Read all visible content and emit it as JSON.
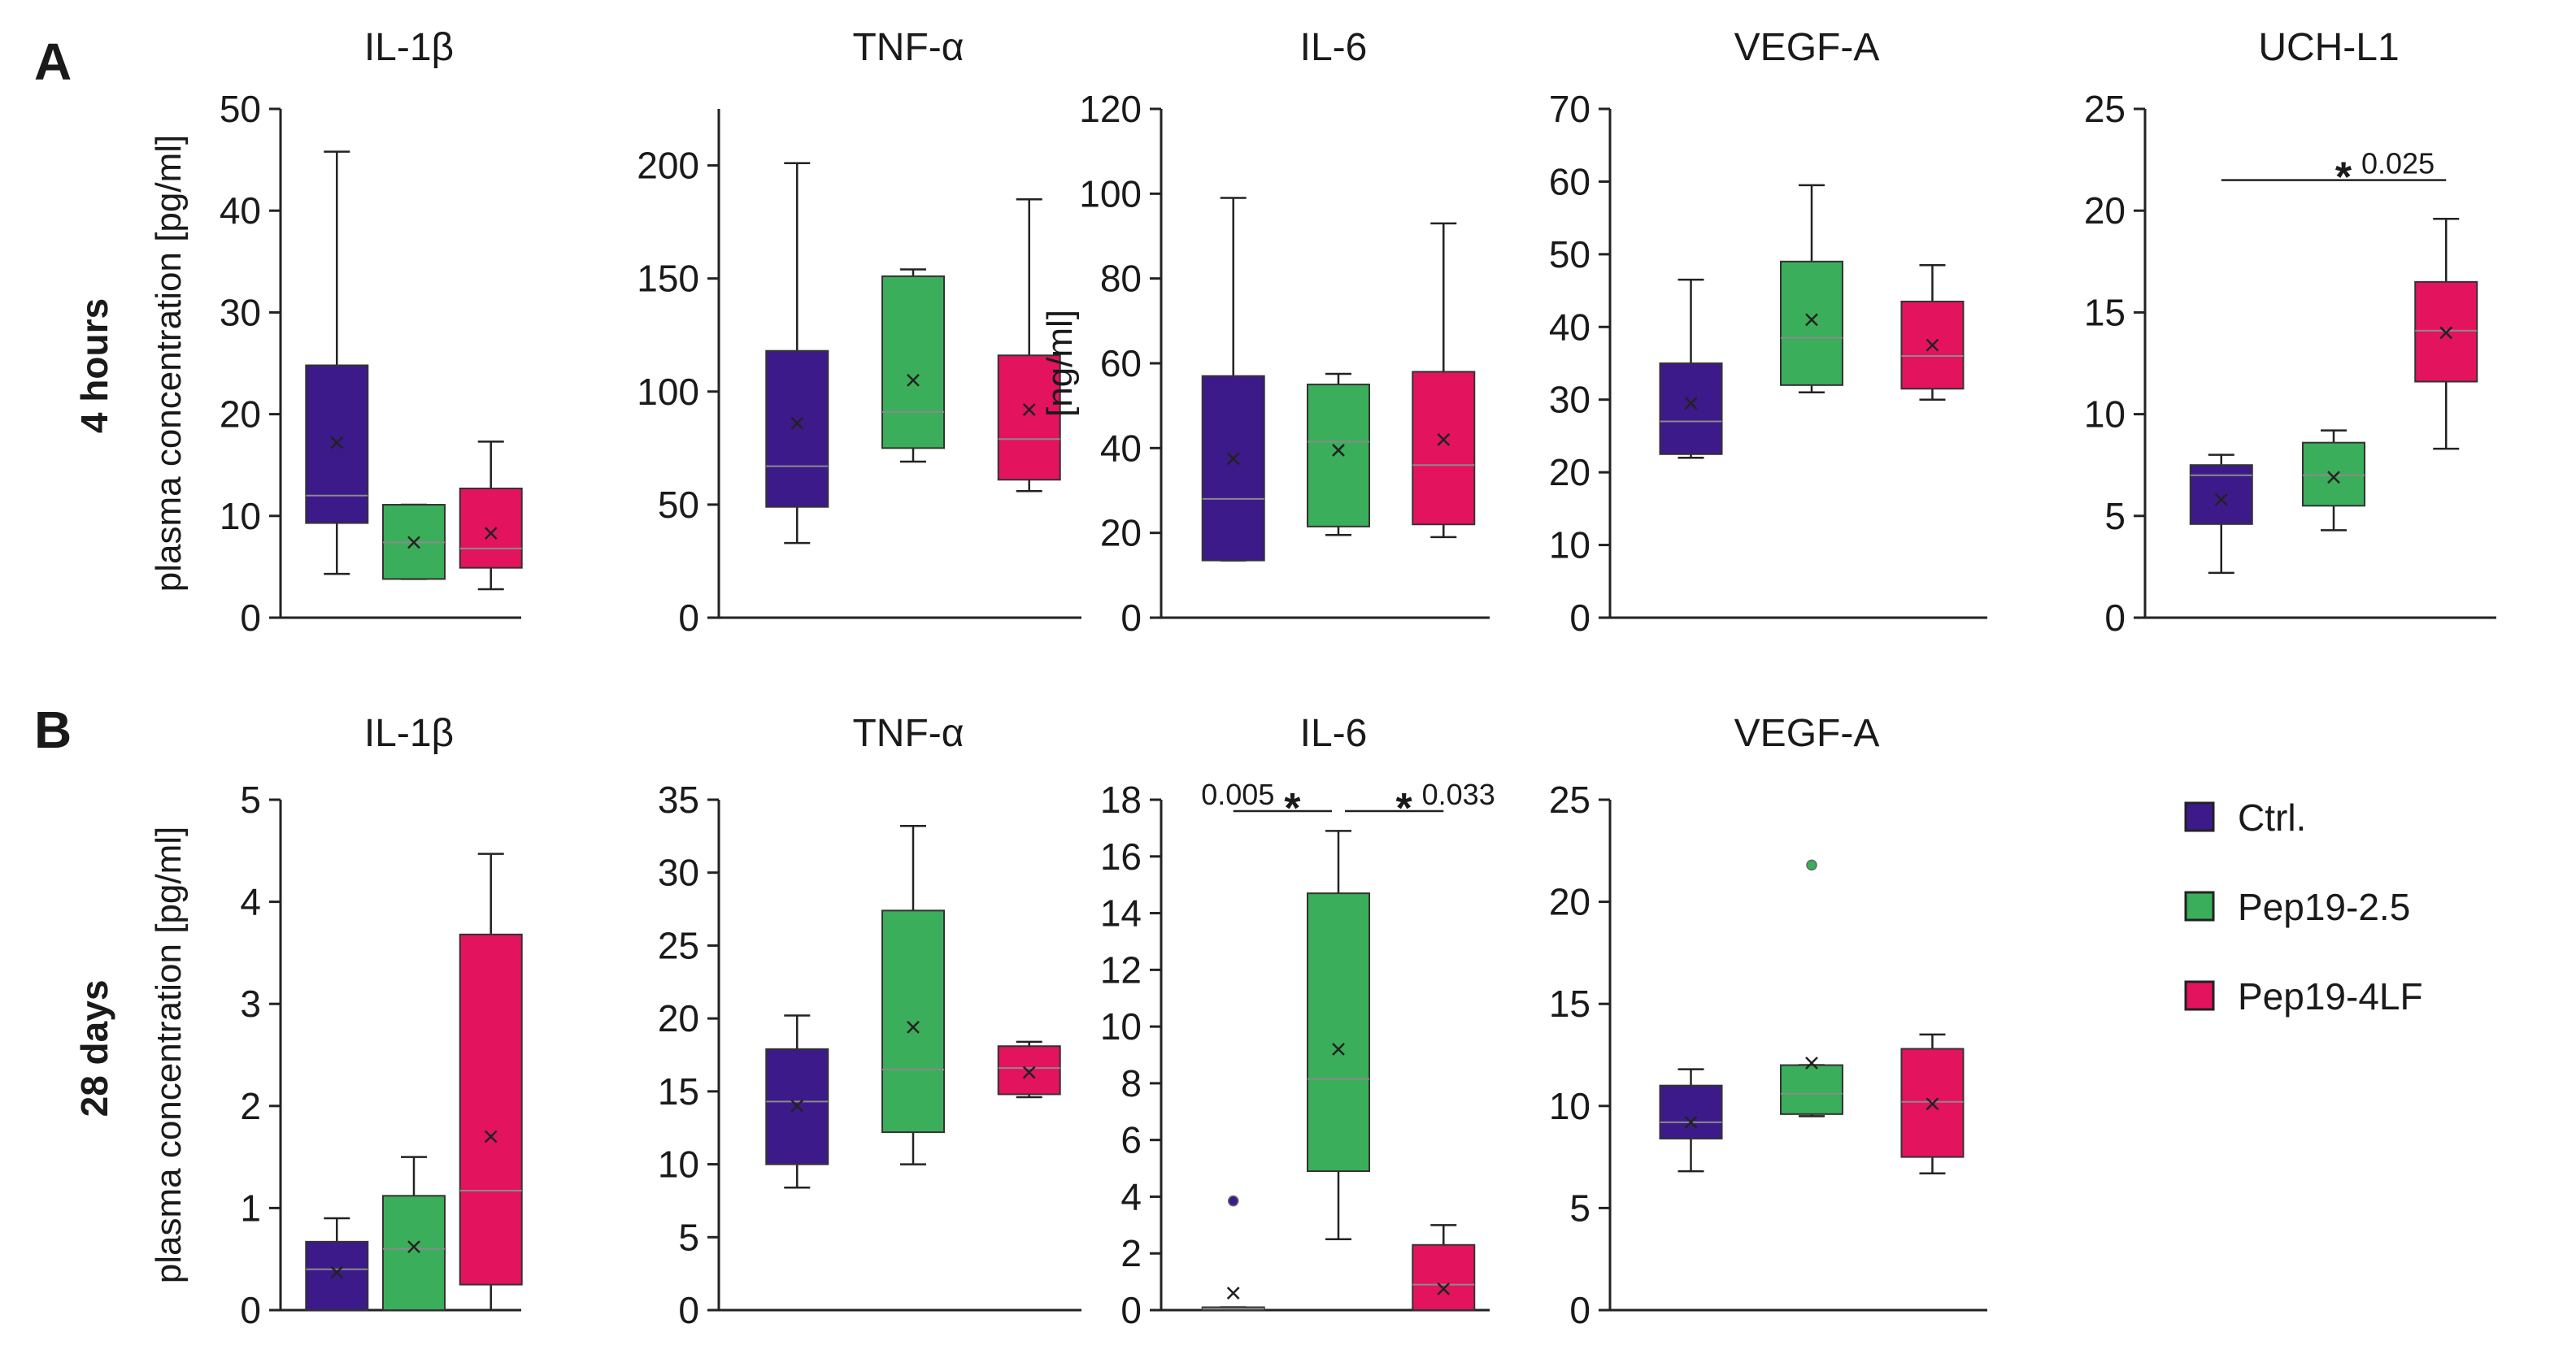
{
  "figure": {
    "panel_a_letter": "A",
    "panel_b_letter": "B",
    "row_a_label": "4 hours",
    "row_b_label": "28 days",
    "ylabel_main": "plasma concentration [pg/ml]",
    "ylabel_il6_4h": "[ng/ml]"
  },
  "colors": {
    "ctrl": "#3d1a8a",
    "pep25": "#3aae5a",
    "pep4lf": "#e4135e",
    "axis": "#222222",
    "median": "#8a8a8a"
  },
  "legend": {
    "items": [
      {
        "label": "Ctrl.",
        "color_key": "ctrl"
      },
      {
        "label": "Pep19-2.5",
        "color_key": "pep25"
      },
      {
        "label": "Pep19-4LF",
        "color_key": "pep4lf"
      }
    ]
  },
  "chart_data": [
    {
      "type": "box",
      "row": 0,
      "col": 0,
      "title": "IL-1β",
      "ylim": [
        0,
        50
      ],
      "yticks": [
        0,
        10,
        20,
        30,
        40,
        50
      ],
      "ylabel": "plasma concentration [pg/ml]",
      "groups": [
        {
          "name": "Ctrl.",
          "whisker_low": 4.3,
          "q1": 9.3,
          "median": 12.0,
          "q3": 24.8,
          "whisker_high": 45.8,
          "mean": 17.2,
          "outliers": []
        },
        {
          "name": "Pep19-2.5",
          "whisker_low": 3.8,
          "q1": 3.8,
          "median": 7.4,
          "q3": 11.1,
          "whisker_high": 11.1,
          "mean": 7.4,
          "outliers": []
        },
        {
          "name": "Pep19-4LF",
          "whisker_low": 2.8,
          "q1": 4.9,
          "median": 6.8,
          "q3": 12.7,
          "whisker_high": 17.3,
          "mean": 8.3,
          "outliers": []
        }
      ],
      "significance": []
    },
    {
      "type": "box",
      "row": 0,
      "col": 1,
      "title": "TNF-α",
      "ylim": [
        0,
        225
      ],
      "yticks": [
        0,
        50,
        100,
        150,
        200
      ],
      "ylabel": "",
      "groups": [
        {
          "name": "Ctrl.",
          "whisker_low": 33,
          "q1": 49,
          "median": 67,
          "q3": 118,
          "whisker_high": 201,
          "mean": 86,
          "outliers": []
        },
        {
          "name": "Pep19-2.5",
          "whisker_low": 69,
          "q1": 75,
          "median": 91,
          "q3": 151,
          "whisker_high": 154,
          "mean": 105,
          "outliers": []
        },
        {
          "name": "Pep19-4LF",
          "whisker_low": 56,
          "q1": 61,
          "median": 79,
          "q3": 116,
          "whisker_high": 185,
          "mean": 92,
          "outliers": []
        }
      ],
      "significance": []
    },
    {
      "type": "box",
      "row": 0,
      "col": 2,
      "title": "IL-6",
      "ylim": [
        0,
        120
      ],
      "yticks": [
        0,
        20,
        40,
        60,
        80,
        100,
        120
      ],
      "ylabel": "[ng/ml]",
      "groups": [
        {
          "name": "Ctrl.",
          "whisker_low": 13.5,
          "q1": 13.5,
          "median": 28,
          "q3": 57,
          "whisker_high": 99,
          "mean": 37.5,
          "outliers": []
        },
        {
          "name": "Pep19-2.5",
          "whisker_low": 19.5,
          "q1": 21.5,
          "median": 41.5,
          "q3": 55,
          "whisker_high": 57.5,
          "mean": 39.5,
          "outliers": []
        },
        {
          "name": "Pep19-4LF",
          "whisker_low": 19,
          "q1": 22,
          "median": 36,
          "q3": 58,
          "whisker_high": 93,
          "mean": 42,
          "outliers": []
        }
      ],
      "significance": []
    },
    {
      "type": "box",
      "row": 0,
      "col": 3,
      "title": "VEGF-A",
      "ylim": [
        0,
        70
      ],
      "yticks": [
        0,
        10,
        20,
        30,
        40,
        50,
        60,
        70
      ],
      "ylabel": "",
      "groups": [
        {
          "name": "Ctrl.",
          "whisker_low": 22,
          "q1": 22.5,
          "median": 27,
          "q3": 35,
          "whisker_high": 46.5,
          "mean": 29.5,
          "outliers": []
        },
        {
          "name": "Pep19-2.5",
          "whisker_low": 31,
          "q1": 32,
          "median": 38.5,
          "q3": 49,
          "whisker_high": 59.5,
          "mean": 41,
          "outliers": []
        },
        {
          "name": "Pep19-4LF",
          "whisker_low": 30,
          "q1": 31.5,
          "median": 36,
          "q3": 43.5,
          "whisker_high": 48.5,
          "mean": 37.5,
          "outliers": []
        }
      ],
      "significance": []
    },
    {
      "type": "box",
      "row": 0,
      "col": 4,
      "title": "UCH-L1",
      "ylim": [
        0,
        25
      ],
      "yticks": [
        0,
        5,
        10,
        15,
        20,
        25
      ],
      "ylabel": "",
      "groups": [
        {
          "name": "Ctrl.",
          "whisker_low": 2.2,
          "q1": 4.6,
          "median": 7.0,
          "q3": 7.5,
          "whisker_high": 8.0,
          "mean": 5.8,
          "outliers": []
        },
        {
          "name": "Pep19-2.5",
          "whisker_low": 4.3,
          "q1": 5.5,
          "median": 7.0,
          "q3": 8.6,
          "whisker_high": 9.2,
          "mean": 6.9,
          "outliers": []
        },
        {
          "name": "Pep19-4LF",
          "whisker_low": 8.3,
          "q1": 11.6,
          "median": 14.1,
          "q3": 16.5,
          "whisker_high": 19.6,
          "mean": 14.0,
          "outliers": []
        }
      ],
      "significance": [
        {
          "from": 0,
          "to": 2,
          "y": 21.5,
          "star": "*",
          "p": "0.025",
          "p_side": "right"
        }
      ]
    },
    {
      "type": "box",
      "row": 1,
      "col": 0,
      "title": "IL-1β",
      "ylim": [
        0,
        5
      ],
      "yticks": [
        0,
        1,
        2,
        3,
        4,
        5
      ],
      "ylabel": "plasma concentration [pg/ml]",
      "groups": [
        {
          "name": "Ctrl.",
          "whisker_low": 0,
          "q1": 0,
          "median": 0.4,
          "q3": 0.67,
          "whisker_high": 0.9,
          "mean": 0.37,
          "outliers": []
        },
        {
          "name": "Pep19-2.5",
          "whisker_low": 0,
          "q1": 0,
          "median": 0.6,
          "q3": 1.12,
          "whisker_high": 1.5,
          "mean": 0.62,
          "outliers": []
        },
        {
          "name": "Pep19-4LF",
          "whisker_low": 0,
          "q1": 0.25,
          "median": 1.17,
          "q3": 3.68,
          "whisker_high": 4.47,
          "mean": 1.7,
          "outliers": []
        }
      ],
      "significance": []
    },
    {
      "type": "box",
      "row": 1,
      "col": 1,
      "title": "TNF-α",
      "ylim": [
        0,
        35
      ],
      "yticks": [
        0,
        5,
        10,
        15,
        20,
        25,
        30,
        35
      ],
      "ylabel": "",
      "groups": [
        {
          "name": "Ctrl.",
          "whisker_low": 8.4,
          "q1": 10,
          "median": 14.3,
          "q3": 17.9,
          "whisker_high": 20.2,
          "mean": 14,
          "outliers": []
        },
        {
          "name": "Pep19-2.5",
          "whisker_low": 10,
          "q1": 12.2,
          "median": 16.5,
          "q3": 27.4,
          "whisker_high": 33.2,
          "mean": 19.4,
          "outliers": []
        },
        {
          "name": "Pep19-4LF",
          "whisker_low": 14.6,
          "q1": 14.8,
          "median": 16.6,
          "q3": 18.1,
          "whisker_high": 18.4,
          "mean": 16.3,
          "outliers": []
        }
      ],
      "significance": []
    },
    {
      "type": "box",
      "row": 1,
      "col": 2,
      "title": "IL-6",
      "ylim": [
        0,
        18
      ],
      "yticks": [
        0,
        2,
        4,
        6,
        8,
        10,
        12,
        14,
        16,
        18
      ],
      "ylabel": "",
      "groups": [
        {
          "name": "Ctrl.",
          "whisker_low": 0,
          "q1": 0,
          "median": 0.05,
          "q3": 0.1,
          "whisker_high": 0.1,
          "mean": 0.6,
          "outliers": [
            3.85
          ]
        },
        {
          "name": "Pep19-2.5",
          "whisker_low": 2.5,
          "q1": 4.9,
          "median": 8.15,
          "q3": 14.7,
          "whisker_high": 16.9,
          "mean": 9.2,
          "outliers": []
        },
        {
          "name": "Pep19-4LF",
          "whisker_low": 0,
          "q1": 0,
          "median": 0.9,
          "q3": 2.3,
          "whisker_high": 3.0,
          "mean": 0.75,
          "outliers": []
        }
      ],
      "significance": [
        {
          "from": 0,
          "to": 1,
          "y": 17.6,
          "star": "*",
          "p": "0.005",
          "p_side": "left"
        },
        {
          "from": 1,
          "to": 2,
          "y": 17.6,
          "star": "*",
          "p": "0.033",
          "p_side": "right"
        }
      ]
    },
    {
      "type": "box",
      "row": 1,
      "col": 3,
      "title": "VEGF-A",
      "ylim": [
        0,
        25
      ],
      "yticks": [
        0,
        5,
        10,
        15,
        20,
        25
      ],
      "ylabel": "",
      "groups": [
        {
          "name": "Ctrl.",
          "whisker_low": 6.8,
          "q1": 8.4,
          "median": 9.2,
          "q3": 11.0,
          "whisker_high": 11.8,
          "mean": 9.2,
          "outliers": []
        },
        {
          "name": "Pep19-2.5",
          "whisker_low": 9.5,
          "q1": 9.6,
          "median": 10.6,
          "q3": 12.0,
          "whisker_high": 12.0,
          "mean": 12.1,
          "outliers": [
            21.8
          ]
        },
        {
          "name": "Pep19-4LF",
          "whisker_low": 6.7,
          "q1": 7.5,
          "median": 10.2,
          "q3": 12.8,
          "whisker_high": 13.5,
          "mean": 10.1,
          "outliers": []
        }
      ],
      "significance": []
    }
  ]
}
